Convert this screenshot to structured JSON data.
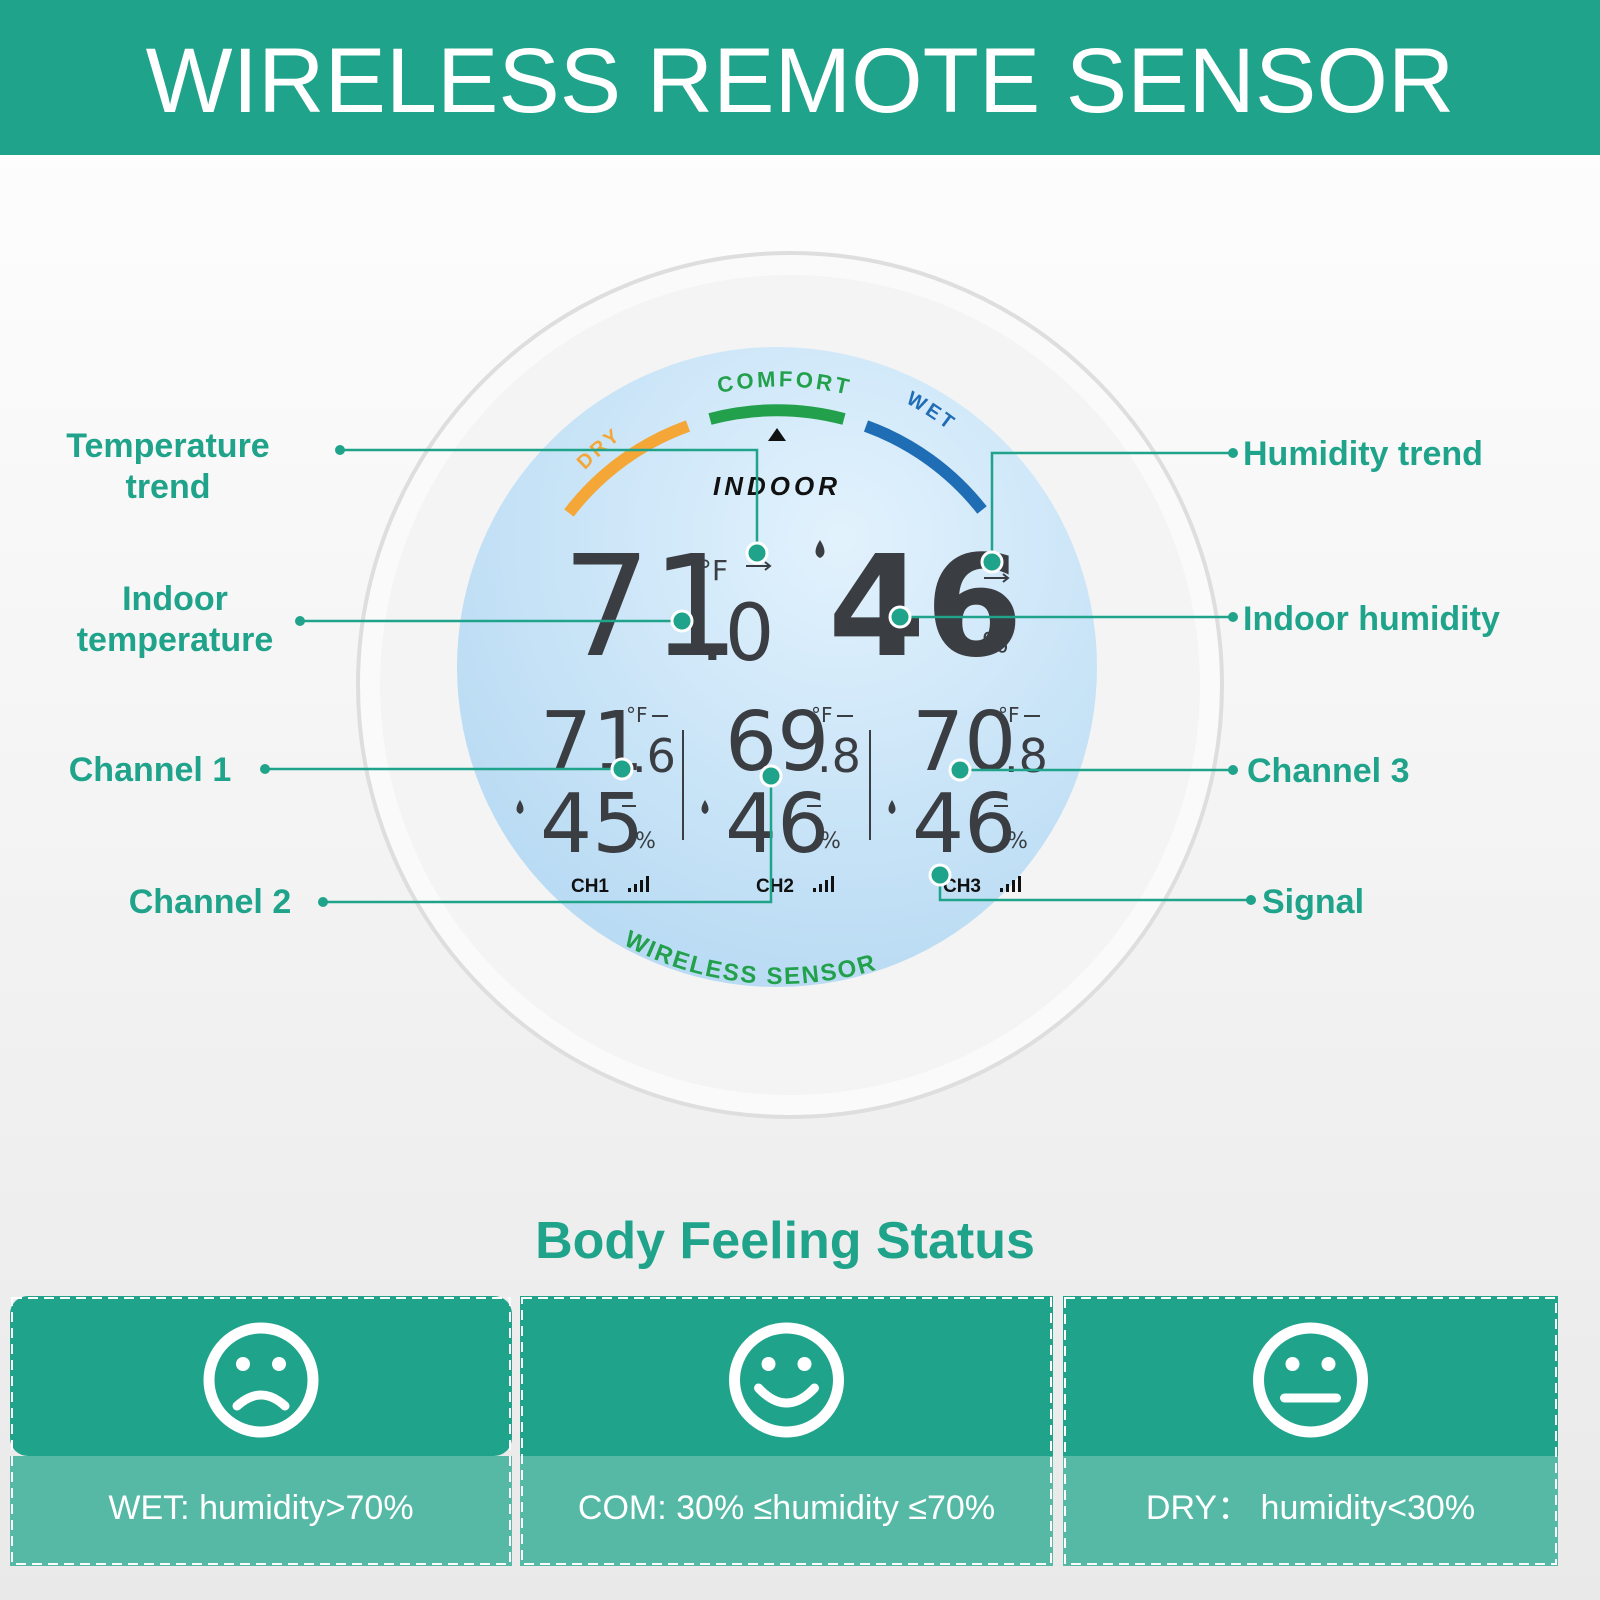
{
  "header": {
    "title": "WIRELESS REMOTE SENSOR"
  },
  "device": {
    "arc_labels": {
      "dry": "DRY",
      "comfort": "COMFORT",
      "wet": "WET"
    },
    "mode": "INDOOR",
    "indoor": {
      "temp_whole": "71",
      "temp_decimal": ".0",
      "temp_unit": "°F",
      "humidity": "46",
      "humidity_unit": "%"
    },
    "channels": [
      {
        "temp_whole": "71",
        "temp_decimal": ".6",
        "temp_unit": "°F",
        "humidity": "45",
        "humidity_unit": "%",
        "label": "CH1"
      },
      {
        "temp_whole": "69",
        "temp_decimal": ".8",
        "temp_unit": "°F",
        "humidity": "46",
        "humidity_unit": "%",
        "label": "CH2"
      },
      {
        "temp_whole": "70",
        "temp_decimal": ".8",
        "temp_unit": "°F",
        "humidity": "46",
        "humidity_unit": "%",
        "label": "CH3"
      }
    ],
    "brand": "WIRELESS  SENSOR"
  },
  "callouts": {
    "left": [
      {
        "lines": [
          "Temperature",
          "trend"
        ]
      },
      {
        "lines": [
          "Indoor",
          "temperature"
        ]
      },
      {
        "lines": [
          "Channel 1"
        ]
      },
      {
        "lines": [
          "Channel 2"
        ]
      }
    ],
    "right": [
      {
        "lines": [
          "Humidity trend"
        ]
      },
      {
        "lines": [
          "Indoor humidity"
        ]
      },
      {
        "lines": [
          "Channel 3"
        ]
      },
      {
        "lines": [
          "Signal"
        ]
      }
    ]
  },
  "status": {
    "title": "Body Feeling Status",
    "items": [
      {
        "face": "sad",
        "text": "WET: humidity>70%"
      },
      {
        "face": "smile",
        "text": "COM: 30% ≤humidity ≤70%"
      },
      {
        "face": "neutral",
        "text": "DRY：  humidity<30%"
      }
    ]
  }
}
